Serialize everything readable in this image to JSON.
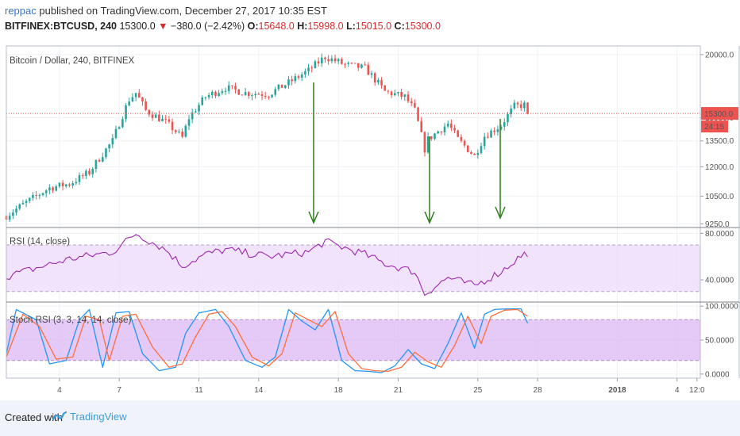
{
  "header": {
    "author": "reppac",
    "published_text": "published on TradingView.com, December 27, 2017 10:35 EST",
    "symbol": "BITFINEX:BTCUSD, 240",
    "last": "15300.0",
    "change": "−380.0 (−2.42%)",
    "o_label": "O:",
    "o_value": "15648.0",
    "h_label": "H:",
    "h_value": "15998.0",
    "l_label": "L:",
    "l_value": "15015.0",
    "c_label": "C:",
    "c_value": "15300.0"
  },
  "footer": {
    "created_with": "Created with",
    "brand": "TradingView"
  },
  "colors": {
    "up": "#26a69a",
    "down": "#ef5350",
    "rsi_line": "#9c27b0",
    "band_fill": "#efdcfb",
    "stoch_k": "#2196f3",
    "stoch_d": "#ff6d3a",
    "arrow": "#2e7d1f",
    "price_tag": "#ef5350",
    "stoch_band": "#dcb8f5"
  },
  "chart_data": [
    {
      "type": "candlestick",
      "title": "Bitcoin / Dollar, 240, BITFINEX",
      "y_ticks": [
        "20000.0",
        "15000.0",
        "13500.0",
        "12000.0",
        "10500.0",
        "9250.0"
      ],
      "y_tick_values": [
        20000,
        15000,
        13500,
        12000,
        10500,
        9250
      ],
      "y_scale": "log",
      "ylim": [
        9100,
        20800
      ],
      "last_price_tag": "15300.0",
      "countdown_tag": "24:15",
      "x_ticks": [
        "4",
        "7",
        "11",
        "14",
        "18",
        "21",
        "25",
        "28",
        "2018",
        "4",
        "12:0"
      ],
      "annotations": "three downward green arrows",
      "x_start": "2017-12-01T08:00",
      "x_end": "2018-01-05T04:00",
      "candle_interval": "4h",
      "close_anchors": [
        [
          "2017-12-01T08:00",
          9600
        ],
        [
          "2017-12-02T12:00",
          10300
        ],
        [
          "2017-12-03T12:00",
          10900
        ],
        [
          "2017-12-04T12:00",
          11100
        ],
        [
          "2017-12-05T12:00",
          11700
        ],
        [
          "2017-12-06T16:00",
          13500
        ],
        [
          "2017-12-07T12:00",
          16300
        ],
        [
          "2017-12-07T20:00",
          16800
        ],
        [
          "2017-12-08T08:00",
          15500
        ],
        [
          "2017-12-09T08:00",
          14700
        ],
        [
          "2017-12-10T04:00",
          13700
        ],
        [
          "2017-12-10T12:00",
          15000
        ],
        [
          "2017-12-11T08:00",
          16500
        ],
        [
          "2017-12-12T08:00",
          17200
        ],
        [
          "2017-12-13T08:00",
          16800
        ],
        [
          "2017-12-14T12:00",
          16700
        ],
        [
          "2017-12-15T12:00",
          17600
        ],
        [
          "2017-12-16T12:00",
          18600
        ],
        [
          "2017-12-17T08:00",
          19800
        ],
        [
          "2017-12-18T08:00",
          19100
        ],
        [
          "2017-12-19T08:00",
          18800
        ],
        [
          "2017-12-20T08:00",
          16900
        ],
        [
          "2017-12-21T08:00",
          16500
        ],
        [
          "2017-12-21T20:00",
          15500
        ],
        [
          "2017-12-22T08:00",
          13000
        ],
        [
          "2017-12-22T12:00",
          13600
        ],
        [
          "2017-12-23T12:00",
          14600
        ],
        [
          "2017-12-24T00:00",
          13600
        ],
        [
          "2017-12-24T20:00",
          12600
        ],
        [
          "2017-12-25T08:00",
          13800
        ],
        [
          "2017-12-26T04:00",
          14500
        ],
        [
          "2017-12-26T20:00",
          15800
        ],
        [
          "2017-12-27T08:00",
          15900
        ],
        [
          "2017-12-27T12:00",
          15300
        ]
      ]
    },
    {
      "type": "line",
      "title": "RSI (14, close)",
      "y_ticks": [
        "80.0000",
        "40.0000"
      ],
      "y_tick_values": [
        80,
        40
      ],
      "ylim": [
        21,
        85
      ],
      "band": [
        70,
        30
      ],
      "x": [
        "2017-12-01T08:00",
        "2017-12-04T12:00",
        "2017-12-06T16:00",
        "2017-12-07T20:00",
        "2017-12-09T08:00",
        "2017-12-10T04:00",
        "2017-12-11T08:00",
        "2017-12-12T08:00",
        "2017-12-14T12:00",
        "2017-12-16T12:00",
        "2017-12-17T08:00",
        "2017-12-19T08:00",
        "2017-12-20T08:00",
        "2017-12-21T20:00",
        "2017-12-22T08:00",
        "2017-12-23T12:00",
        "2017-12-24T20:00",
        "2017-12-26T04:00",
        "2017-12-27T08:00",
        "2017-12-27T12:00"
      ],
      "values": [
        43,
        58,
        64,
        80,
        66,
        52,
        62,
        66,
        60,
        64,
        73,
        62,
        54,
        47,
        28,
        42,
        35,
        47,
        63,
        58
      ]
    },
    {
      "type": "line",
      "title": "Stoch RSI (3, 3, 14, 14, close)",
      "y_ticks": [
        "100.0000",
        "50.0000",
        "0.0000"
      ],
      "y_tick_values": [
        100,
        50,
        0
      ],
      "ylim": [
        -6,
        106
      ],
      "band": [
        80,
        20
      ],
      "series": [
        {
          "x": [
            "2017-12-01T08:00",
            "2017-12-01T20:00",
            "2017-12-02T20:00",
            "2017-12-03T12:00",
            "2017-12-04T08:00",
            "2017-12-05T00:00",
            "2017-12-05T12:00",
            "2017-12-06T04:00",
            "2017-12-06T20:00",
            "2017-12-07T12:00",
            "2017-12-08T04:00",
            "2017-12-09T00:00",
            "2017-12-09T20:00",
            "2017-12-10T08:00",
            "2017-12-11T00:00",
            "2017-12-11T20:00",
            "2017-12-12T12:00",
            "2017-12-13T08:00",
            "2017-12-14T04:00",
            "2017-12-14T20:00",
            "2017-12-15T12:00",
            "2017-12-16T04:00",
            "2017-12-16T20:00",
            "2017-12-17T12:00",
            "2017-12-18T04:00",
            "2017-12-18T20:00",
            "2017-12-19T12:00",
            "2017-12-20T04:00",
            "2017-12-20T20:00",
            "2017-12-21T12:00",
            "2017-12-22T04:00",
            "2017-12-22T20:00",
            "2017-12-23T12:00",
            "2017-12-24T04:00",
            "2017-12-24T20:00",
            "2017-12-25T08:00",
            "2017-12-25T20:00",
            "2017-12-26T12:00",
            "2017-12-27T04:00",
            "2017-12-27T12:00"
          ],
          "values": [
            30,
            95,
            80,
            15,
            20,
            80,
            95,
            10,
            90,
            92,
            30,
            5,
            10,
            60,
            90,
            95,
            70,
            20,
            10,
            25,
            95,
            78,
            65,
            95,
            20,
            5,
            4,
            2,
            12,
            36,
            15,
            8,
            45,
            90,
            38,
            88,
            95,
            96,
            96,
            75
          ]
        },
        {
          "x": [
            "2017-12-01T08:00",
            "2017-12-02T04:00",
            "2017-12-03T00:00",
            "2017-12-03T20:00",
            "2017-12-04T16:00",
            "2017-12-05T08:00",
            "2017-12-06T00:00",
            "2017-12-06T12:00",
            "2017-12-07T04:00",
            "2017-12-07T20:00",
            "2017-12-08T16:00",
            "2017-12-09T12:00",
            "2017-12-10T04:00",
            "2017-12-10T20:00",
            "2017-12-11T12:00",
            "2017-12-12T04:00",
            "2017-12-12T20:00",
            "2017-12-13T16:00",
            "2017-12-14T12:00",
            "2017-12-15T04:00",
            "2017-12-15T20:00",
            "2017-12-16T12:00",
            "2017-12-17T04:00",
            "2017-12-17T20:00",
            "2017-12-18T12:00",
            "2017-12-19T04:00",
            "2017-12-19T20:00",
            "2017-12-20T12:00",
            "2017-12-21T04:00",
            "2017-12-21T20:00",
            "2017-12-22T12:00",
            "2017-12-23T04:00",
            "2017-12-23T20:00",
            "2017-12-24T12:00",
            "2017-12-25T04:00",
            "2017-12-25T16:00",
            "2017-12-26T08:00",
            "2017-12-27T00:00",
            "2017-12-27T12:00"
          ],
          "values": [
            25,
            88,
            70,
            22,
            25,
            85,
            80,
            20,
            85,
            88,
            40,
            10,
            15,
            55,
            88,
            92,
            70,
            25,
            12,
            30,
            90,
            80,
            70,
            92,
            30,
            8,
            5,
            4,
            10,
            32,
            18,
            10,
            42,
            85,
            45,
            85,
            94,
            95,
            85
          ]
        }
      ]
    }
  ]
}
